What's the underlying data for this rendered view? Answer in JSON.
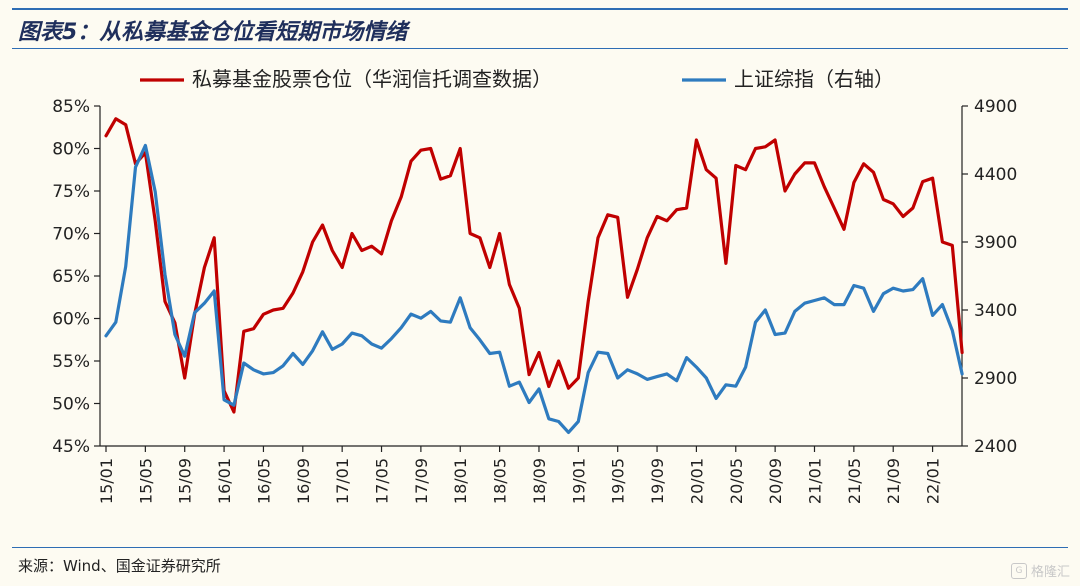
{
  "figure": {
    "title": "图表5：从私募基金仓位看短期市场情绪",
    "source": "来源：Wind、国金证券研究所",
    "watermark": "格隆汇"
  },
  "chart_data": {
    "type": "line",
    "title": "",
    "xlabel": "",
    "ylabel": "",
    "y2label": "",
    "legend_position": "top",
    "grid": false,
    "ylim": [
      0.45,
      0.85
    ],
    "y2lim": [
      2400,
      4900
    ],
    "y_ticks": [
      "85%",
      "80%",
      "75%",
      "70%",
      "65%",
      "60%",
      "55%",
      "50%",
      "45%"
    ],
    "y_tick_values": [
      0.85,
      0.8,
      0.75,
      0.7,
      0.65,
      0.6,
      0.55,
      0.5,
      0.45
    ],
    "y2_ticks": [
      "4900",
      "4400",
      "3900",
      "3400",
      "2900",
      "2400"
    ],
    "y2_tick_values": [
      4900,
      4400,
      3900,
      3400,
      2900,
      2400
    ],
    "x_tick_labels": [
      "15/01",
      "15/05",
      "15/09",
      "16/01",
      "16/05",
      "16/09",
      "17/01",
      "17/05",
      "17/09",
      "18/01",
      "18/05",
      "18/09",
      "19/01",
      "19/05",
      "19/09",
      "20/01",
      "20/05",
      "20/09",
      "21/01",
      "21/05",
      "21/09",
      "22/01"
    ],
    "x": [
      "15/01",
      "15/02",
      "15/03",
      "15/04",
      "15/05",
      "15/06",
      "15/07",
      "15/08",
      "15/09",
      "15/10",
      "15/11",
      "15/12",
      "16/01",
      "16/02",
      "16/03",
      "16/04",
      "16/05",
      "16/06",
      "16/07",
      "16/08",
      "16/09",
      "16/10",
      "16/11",
      "16/12",
      "17/01",
      "17/02",
      "17/03",
      "17/04",
      "17/05",
      "17/06",
      "17/07",
      "17/08",
      "17/09",
      "17/10",
      "17/11",
      "17/12",
      "18/01",
      "18/02",
      "18/03",
      "18/04",
      "18/05",
      "18/06",
      "18/07",
      "18/08",
      "18/09",
      "18/10",
      "18/11",
      "18/12",
      "19/01",
      "19/02",
      "19/03",
      "19/04",
      "19/05",
      "19/06",
      "19/07",
      "19/08",
      "19/09",
      "19/10",
      "19/11",
      "19/12",
      "20/01",
      "20/02",
      "20/03",
      "20/04",
      "20/05",
      "20/06",
      "20/07",
      "20/08",
      "20/09",
      "20/10",
      "20/11",
      "20/12",
      "21/01",
      "21/02",
      "21/03",
      "21/04",
      "21/05",
      "21/06",
      "21/07",
      "21/08",
      "21/09",
      "21/10",
      "21/11",
      "21/12",
      "22/01",
      "22/02",
      "22/03",
      "22/04"
    ],
    "series": [
      {
        "name": "私募基金股票仓位（华润信托调查数据）",
        "axis": "left",
        "color": "#C00000",
        "values": [
          0.815,
          0.835,
          0.828,
          0.782,
          0.795,
          0.715,
          0.62,
          0.595,
          0.53,
          0.605,
          0.66,
          0.695,
          0.515,
          0.49,
          0.585,
          0.588,
          0.605,
          0.61,
          0.612,
          0.63,
          0.655,
          0.69,
          0.71,
          0.68,
          0.66,
          0.7,
          0.68,
          0.685,
          0.676,
          0.715,
          0.743,
          0.785,
          0.798,
          0.8,
          0.764,
          0.768,
          0.8,
          0.7,
          0.695,
          0.66,
          0.7,
          0.64,
          0.612,
          0.534,
          0.56,
          0.52,
          0.55,
          0.518,
          0.53,
          0.62,
          0.695,
          0.722,
          0.719,
          0.625,
          0.658,
          0.695,
          0.72,
          0.715,
          0.728,
          0.73,
          0.81,
          0.775,
          0.765,
          0.665,
          0.78,
          0.775,
          0.8,
          0.802,
          0.81,
          0.75,
          0.77,
          0.783,
          0.783,
          0.755,
          0.73,
          0.705,
          0.76,
          0.782,
          0.772,
          0.74,
          0.735,
          0.72,
          0.73,
          0.761,
          0.765,
          0.69,
          0.686,
          0.56
        ]
      },
      {
        "name": "上证综指（右轴）",
        "axis": "right",
        "color": "#2E7BBF",
        "values": [
          3210,
          3310,
          3720,
          4450,
          4610,
          4270,
          3660,
          3220,
          3060,
          3380,
          3450,
          3540,
          2740,
          2700,
          3010,
          2960,
          2930,
          2940,
          2990,
          3080,
          3000,
          3100,
          3240,
          3110,
          3150,
          3230,
          3210,
          3150,
          3120,
          3190,
          3270,
          3370,
          3340,
          3390,
          3320,
          3310,
          3490,
          3270,
          3180,
          3080,
          3090,
          2840,
          2870,
          2720,
          2820,
          2600,
          2580,
          2500,
          2580,
          2940,
          3090,
          3080,
          2900,
          2960,
          2930,
          2890,
          2910,
          2930,
          2880,
          3050,
          2980,
          2900,
          2750,
          2850,
          2840,
          2980,
          3310,
          3400,
          3220,
          3230,
          3390,
          3450,
          3470,
          3490,
          3440,
          3440,
          3580,
          3560,
          3390,
          3520,
          3560,
          3540,
          3550,
          3630,
          3360,
          3440,
          3250,
          2930
        ]
      }
    ]
  }
}
